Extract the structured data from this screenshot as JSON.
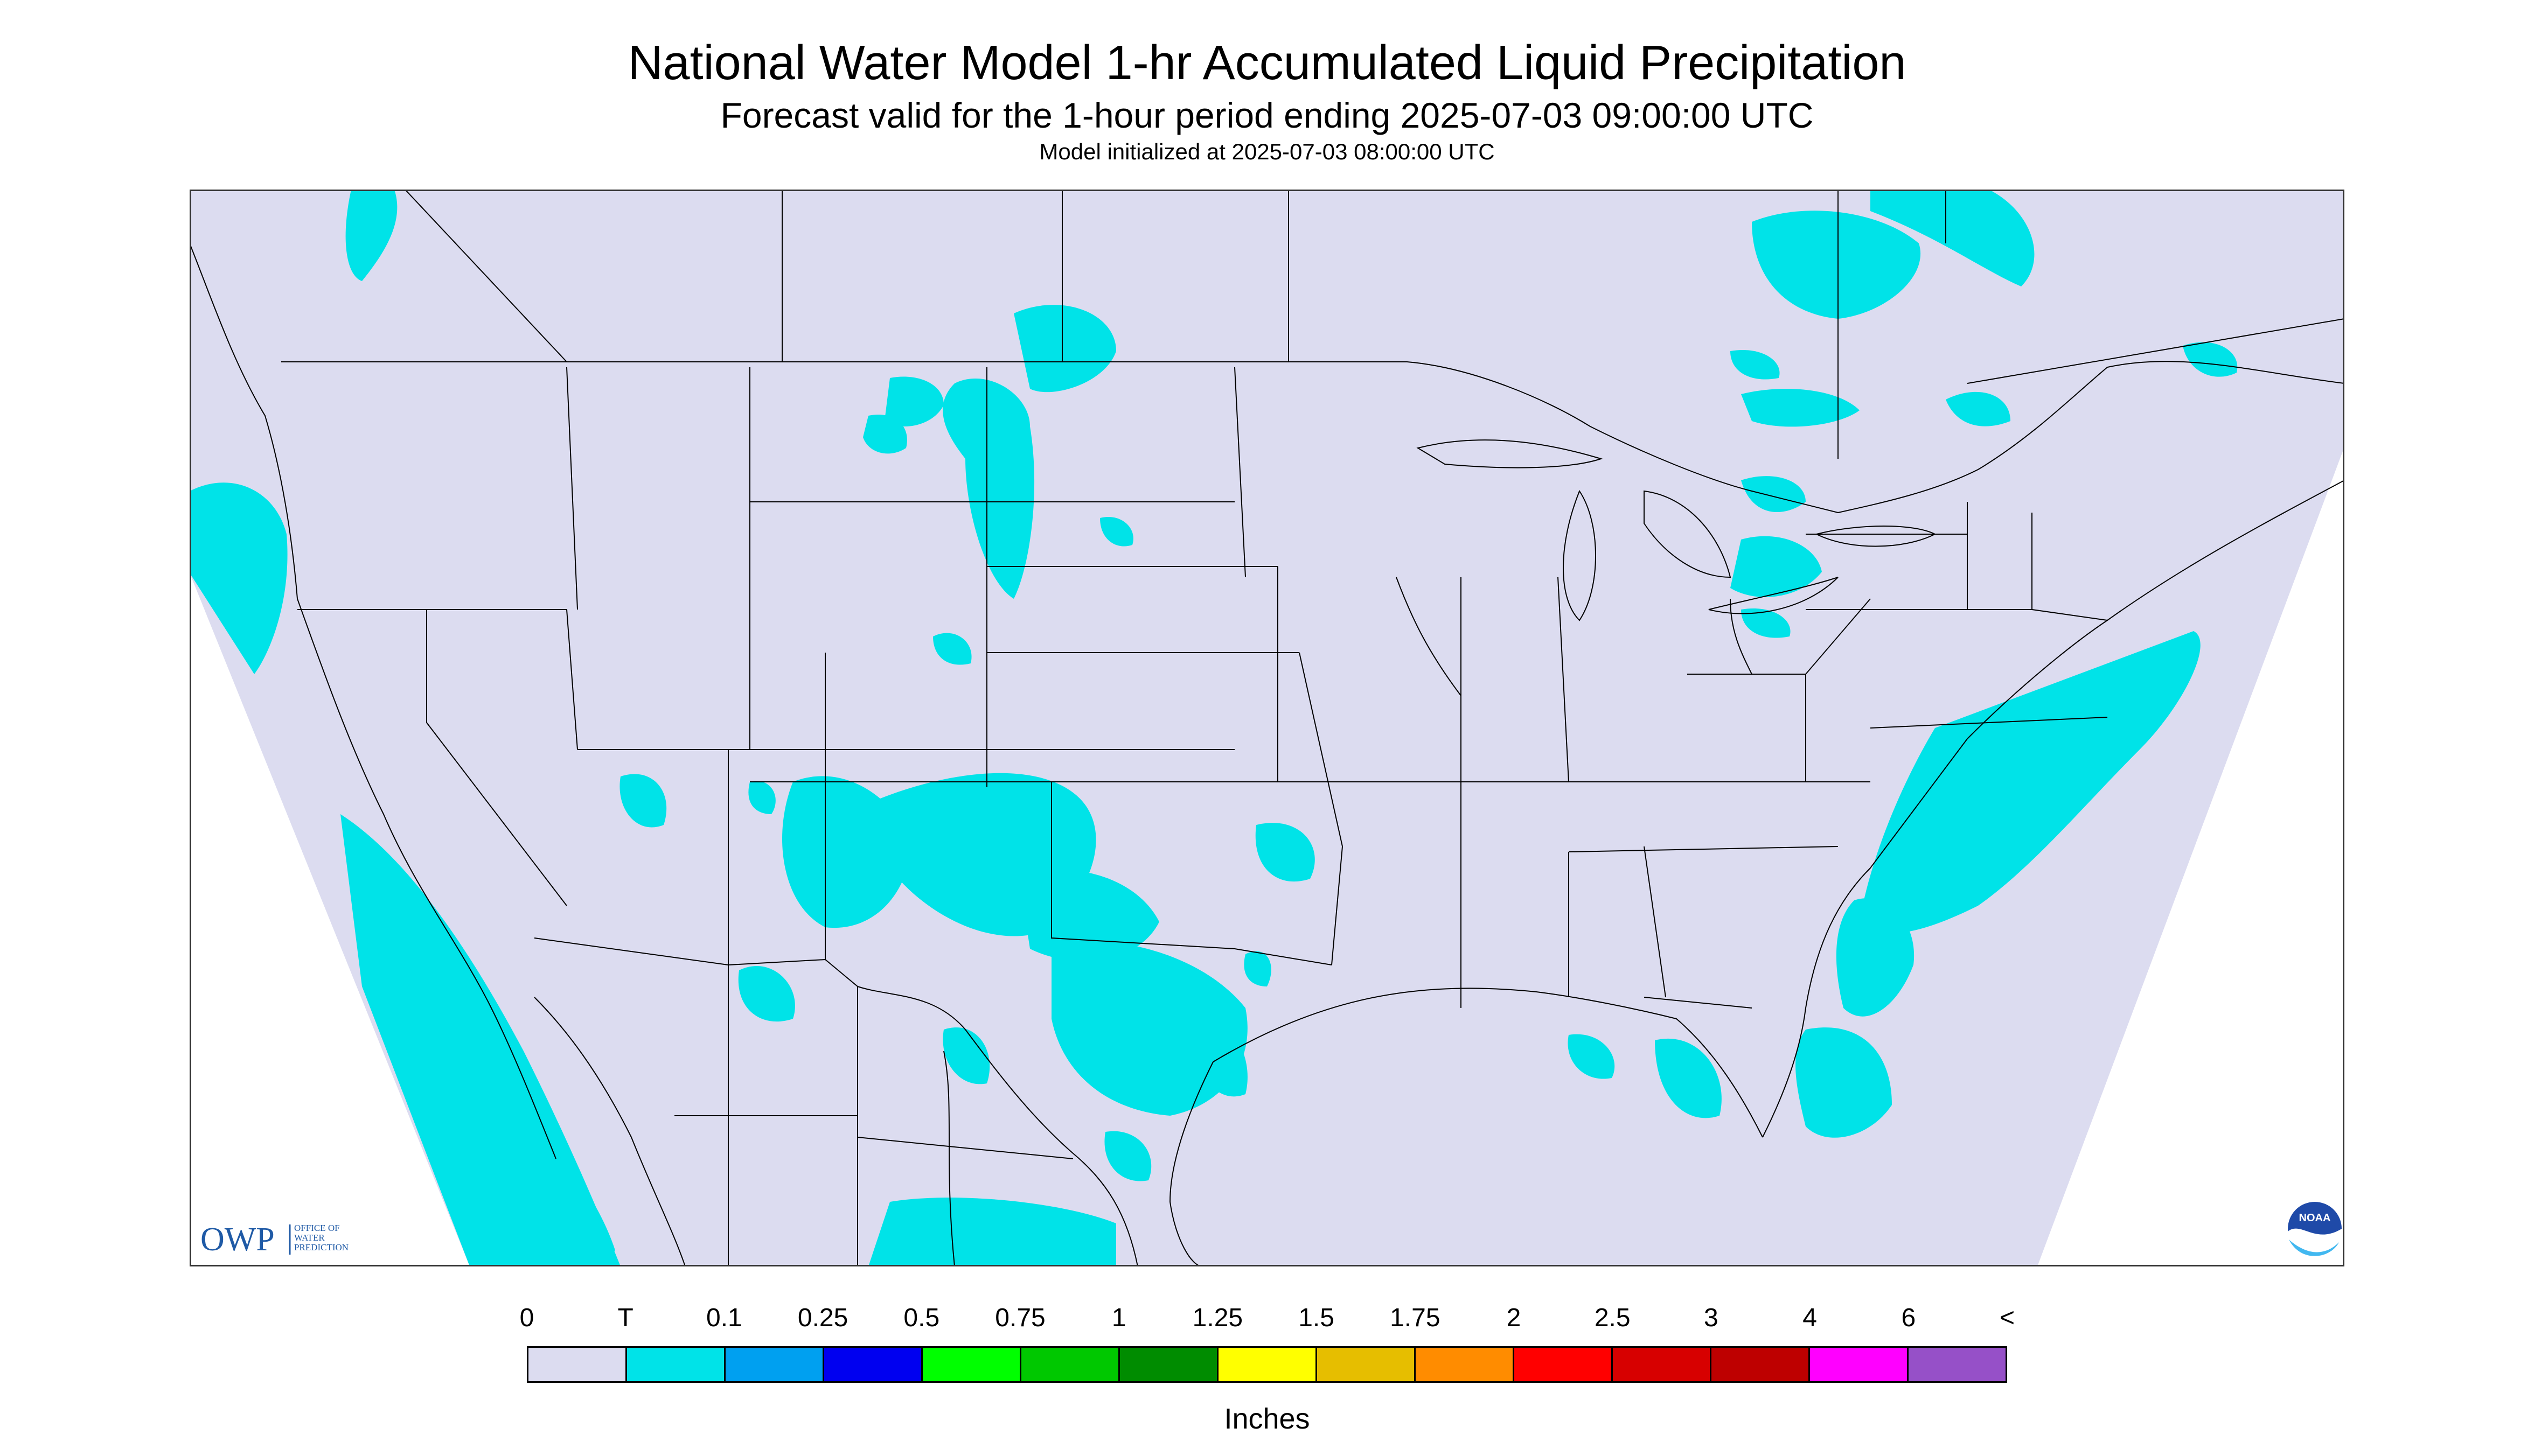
{
  "title": "National Water Model 1-hr Accumulated Liquid Precipitation",
  "subtitle": "Forecast valid for the 1-hour period ending 2025-07-03 09:00:00 UTC",
  "init_line": "Model initialized at 2025-07-03 08:00:00 UTC",
  "map": {
    "background": "#dcdcf0",
    "outside": "#ffffff",
    "boundary_color": "#000000",
    "rain_color": "#00e3e8",
    "logo_owp": {
      "mark": "OWP",
      "text_lines": [
        "OFFICE OF",
        "WATER",
        "PREDICTION"
      ],
      "color": "#1f5aa6"
    },
    "logo_noaa": {
      "text": "NOAA",
      "icon": "noaa-logo-icon"
    }
  },
  "legend": {
    "tick_labels": [
      "0",
      "T",
      "0.1",
      "0.25",
      "0.5",
      "0.75",
      "1",
      "1.25",
      "1.5",
      "1.75",
      "2",
      "2.5",
      "3",
      "4",
      "6",
      "<"
    ],
    "colors": [
      "#dcdcf0",
      "#00e3e8",
      "#00a0f0",
      "#0000f0",
      "#00ff00",
      "#00c800",
      "#008c00",
      "#ffff00",
      "#e6be00",
      "#ff8c00",
      "#ff0000",
      "#d70000",
      "#be0000",
      "#ff00ff",
      "#9650c8"
    ],
    "units": "Inches"
  }
}
